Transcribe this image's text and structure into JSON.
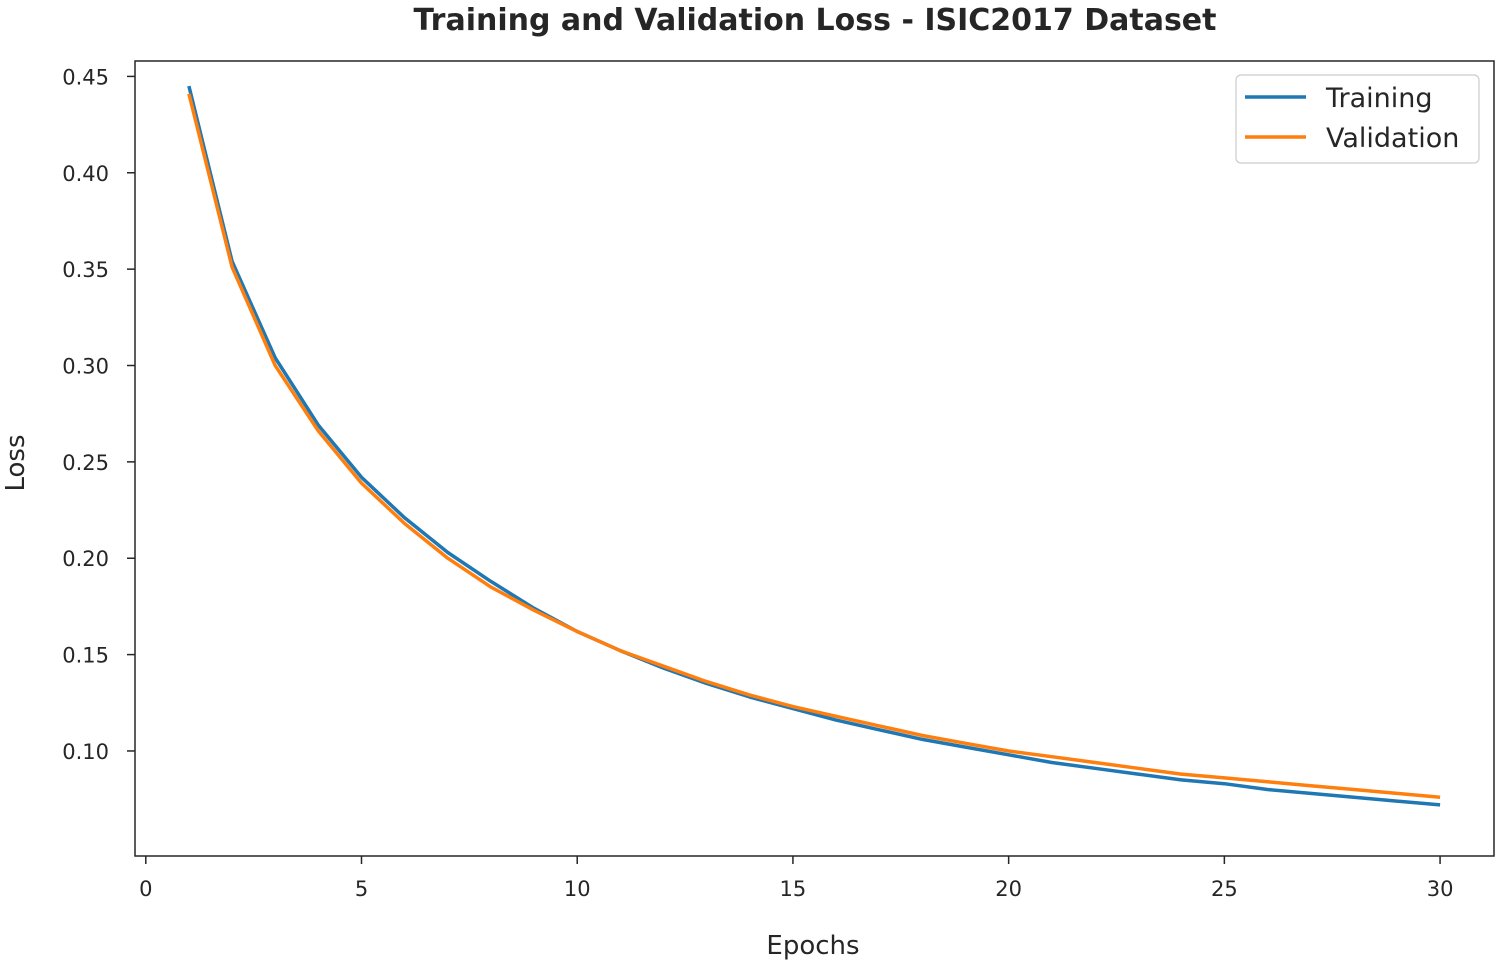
{
  "chart_data": {
    "type": "line",
    "title": "Training and Validation Loss - ISIC2017 Dataset",
    "xlabel": "Epochs",
    "ylabel": "Loss",
    "xlim": [
      -0.25,
      31.25
    ],
    "ylim": [
      0.0455,
      0.458
    ],
    "x_ticks": [
      0,
      5,
      10,
      15,
      20,
      25,
      30
    ],
    "y_ticks": [
      0.1,
      0.15,
      0.2,
      0.25,
      0.3,
      0.35,
      0.4,
      0.45
    ],
    "grid": false,
    "legend_position": "top-right",
    "x": [
      1,
      2,
      3,
      4,
      5,
      6,
      7,
      8,
      9,
      10,
      11,
      12,
      13,
      14,
      15,
      16,
      17,
      18,
      19,
      20,
      21,
      22,
      23,
      24,
      25,
      26,
      27,
      28,
      29,
      30
    ],
    "series": [
      {
        "name": "Training",
        "color": "#1f77b4",
        "values": [
          0.445,
          0.354,
          0.304,
          0.269,
          0.242,
          0.221,
          0.203,
          0.188,
          0.174,
          0.162,
          0.152,
          0.143,
          0.135,
          0.128,
          0.122,
          0.116,
          0.111,
          0.106,
          0.102,
          0.098,
          0.094,
          0.091,
          0.088,
          0.085,
          0.083,
          0.08,
          0.078,
          0.076,
          0.074,
          0.072
        ]
      },
      {
        "name": "Validation",
        "color": "#ff7f0e",
        "values": [
          0.441,
          0.351,
          0.3,
          0.266,
          0.239,
          0.218,
          0.2,
          0.185,
          0.173,
          0.162,
          0.152,
          0.144,
          0.136,
          0.129,
          0.123,
          0.118,
          0.113,
          0.108,
          0.104,
          0.1,
          0.097,
          0.094,
          0.091,
          0.088,
          0.086,
          0.084,
          0.082,
          0.08,
          0.078,
          0.076
        ]
      }
    ]
  }
}
